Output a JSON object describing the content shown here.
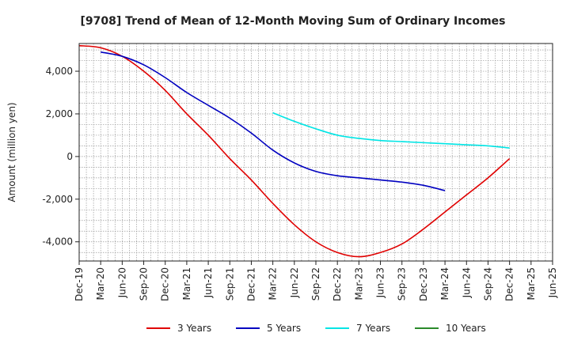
{
  "chart_data": {
    "type": "line",
    "title": "[9708]  Trend of Mean of 12-Month Moving Sum of Ordinary Incomes",
    "xlabel": "",
    "ylabel": "Amount (million yen)",
    "ylim": [
      -4900,
      5300
    ],
    "yticks": [
      -4000,
      -2000,
      0,
      2000,
      4000
    ],
    "ytick_labels": [
      "-4,000",
      "-2,000",
      "0",
      "2,000",
      "4,000"
    ],
    "x_min": 0,
    "x_max": 66,
    "xticks": [
      0,
      3,
      6,
      9,
      12,
      15,
      18,
      21,
      24,
      27,
      30,
      33,
      36,
      39,
      42,
      45,
      48,
      51,
      54,
      57,
      60,
      63,
      66
    ],
    "xtick_labels": [
      "Dec-19",
      "Mar-20",
      "Jun-20",
      "Sep-20",
      "Dec-20",
      "Mar-21",
      "Jun-21",
      "Sep-21",
      "Dec-21",
      "Mar-22",
      "Jun-22",
      "Sep-22",
      "Dec-22",
      "Mar-23",
      "Jun-23",
      "Sep-23",
      "Dec-23",
      "Mar-24",
      "Jun-24",
      "Sep-24",
      "Dec-24",
      "Mar-25",
      "Jun-25"
    ],
    "grid": true,
    "legend_position": "bottom",
    "series": [
      {
        "name": "3 Years",
        "color": "#e00000",
        "x": [
          0,
          3,
          6,
          9,
          12,
          15,
          18,
          21,
          24,
          27,
          30,
          33,
          36,
          39,
          42,
          45,
          48,
          51,
          54,
          57,
          60,
          63,
          66
        ],
        "values": [
          5200,
          5100,
          4700,
          4000,
          3100,
          2000,
          1000,
          -100,
          -1100,
          -2200,
          -3200,
          -4000,
          -4500,
          -4700,
          -4500,
          -4100,
          -3400,
          -2600,
          -1800,
          -1000,
          -100,
          null,
          null
        ]
      },
      {
        "name": "5 Years",
        "color": "#0000c0",
        "x": [
          0,
          3,
          6,
          9,
          12,
          15,
          18,
          21,
          24,
          27,
          30,
          33,
          36,
          39,
          42,
          45,
          48,
          51,
          54,
          57,
          60,
          63,
          66
        ],
        "values": [
          null,
          4900,
          4700,
          4300,
          3700,
          3000,
          2400,
          1800,
          1100,
          300,
          -300,
          -700,
          -900,
          -1000,
          -1100,
          -1200,
          -1350,
          -1600,
          null,
          null,
          null,
          null,
          null
        ]
      },
      {
        "name": "7 Years",
        "color": "#00e5e5",
        "x": [
          27,
          30,
          33,
          36,
          39,
          42,
          45,
          48,
          51,
          54,
          57,
          60
        ],
        "values": [
          2050,
          1650,
          1300,
          1000,
          850,
          750,
          700,
          650,
          600,
          550,
          500,
          400
        ]
      },
      {
        "name": "10 Years",
        "color": "#2a8a2a",
        "x": [],
        "values": []
      }
    ]
  }
}
